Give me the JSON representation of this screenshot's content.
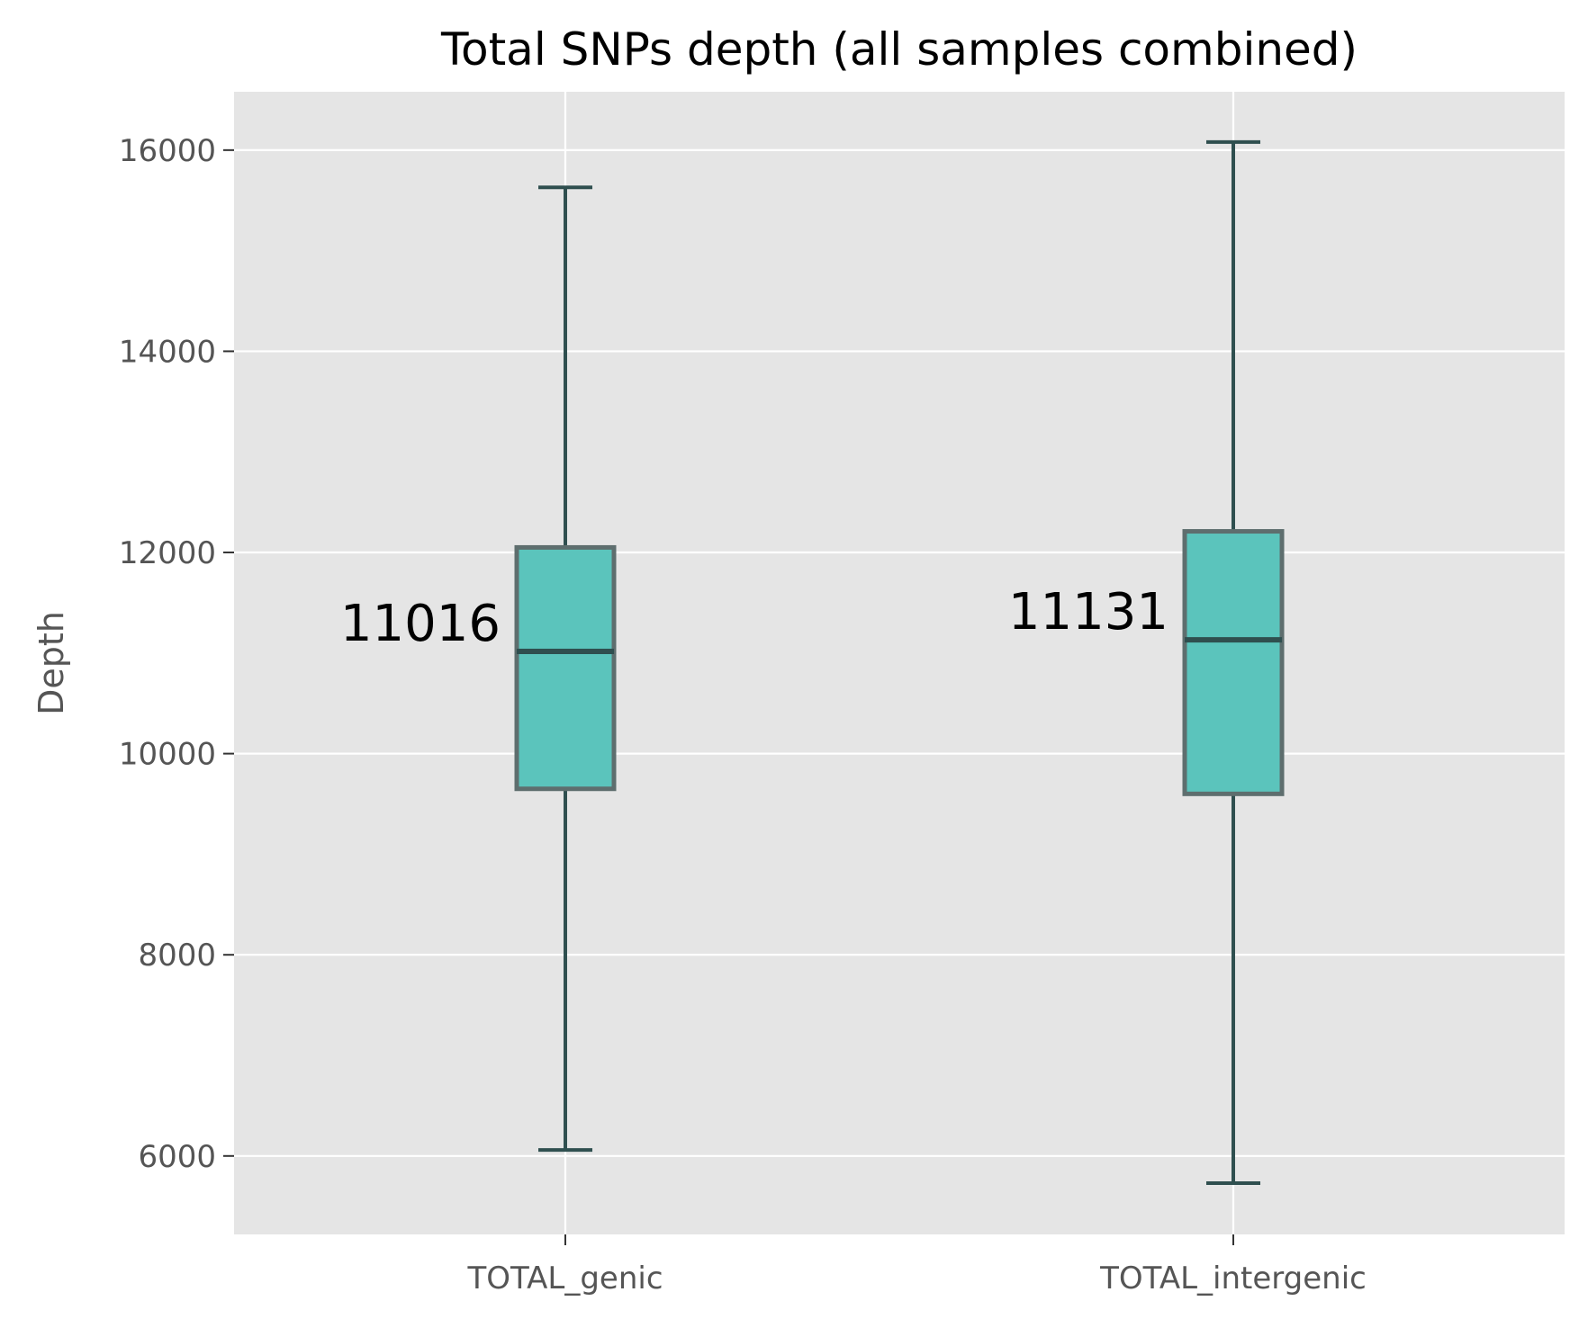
{
  "chart_data": {
    "type": "box",
    "title": "Total SNPs depth (all samples combined)",
    "xlabel": "",
    "ylabel": "Depth",
    "ylim": [
      5220,
      16580
    ],
    "yticks": [
      6000,
      8000,
      10000,
      12000,
      14000,
      16000
    ],
    "grid": true,
    "categories": [
      "TOTAL_genic",
      "TOTAL_intergenic"
    ],
    "boxes": [
      {
        "category": "TOTAL_genic",
        "whisker_low": 6060,
        "q1": 9650,
        "median": 11016,
        "q3": 12050,
        "whisker_high": 15630,
        "label": "11016"
      },
      {
        "category": "TOTAL_intergenic",
        "whisker_low": 5730,
        "q1": 9600,
        "median": 11131,
        "q3": 12210,
        "whisker_high": 16080,
        "label": "11131"
      }
    ],
    "colors": {
      "plot_background": "#E5E5E5",
      "grid": "#FFFFFF",
      "box_fill": "#5BC4BC",
      "box_edge": "#5E6E6E",
      "line": "#2F4F4F"
    }
  }
}
